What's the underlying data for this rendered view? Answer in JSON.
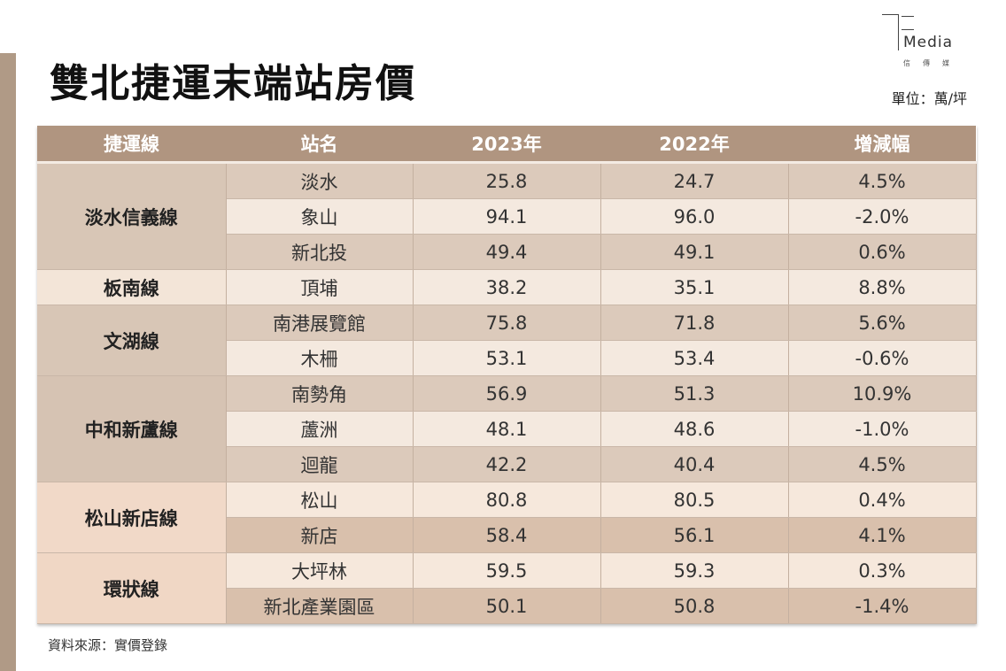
{
  "title": "雙北捷運末端站房價",
  "unit": "單位：萬/坪",
  "logo": {
    "word": "Media",
    "sub": "信傳媒"
  },
  "table": {
    "headers": [
      "捷運線",
      "站名",
      "2023年",
      "2022年",
      "增減幅"
    ],
    "groups": [
      {
        "line": "淡水信義線",
        "color": "#d8c6b6",
        "rows": [
          [
            "淡水",
            "25.8",
            "24.7",
            "4.5%"
          ],
          [
            "象山",
            "94.1",
            "96.0",
            "-2.0%"
          ],
          [
            "新北投",
            "49.4",
            "49.1",
            "0.6%"
          ]
        ]
      },
      {
        "line": "板南線",
        "color": "#f3e5d8",
        "rows": [
          [
            "頂埔",
            "38.2",
            "35.1",
            "8.8%"
          ]
        ]
      },
      {
        "line": "文湖線",
        "color": "#d8c6b6",
        "rows": [
          [
            "南港展覽館",
            "75.8",
            "71.8",
            "5.6%"
          ],
          [
            "木柵",
            "53.1",
            "53.4",
            "-0.6%"
          ]
        ]
      },
      {
        "line": "中和新蘆線",
        "color": "#d6c3b3",
        "rows": [
          [
            "南勢角",
            "56.9",
            "51.3",
            "10.9%"
          ],
          [
            "蘆洲",
            "48.1",
            "48.6",
            "-1.0%"
          ],
          [
            "迴龍",
            "42.2",
            "40.4",
            "4.5%"
          ]
        ]
      },
      {
        "line": "松山新店線",
        "color": "#f1d9c8",
        "warm": true,
        "rows": [
          [
            "松山",
            "80.8",
            "80.5",
            "0.4%"
          ],
          [
            "新店",
            "58.4",
            "56.1",
            "4.1%"
          ]
        ]
      },
      {
        "line": "環狀線",
        "color": "#f0d7c5",
        "warm": true,
        "rows": [
          [
            "大坪林",
            "59.5",
            "59.3",
            "0.3%"
          ],
          [
            "新北產業園區",
            "50.1",
            "50.8",
            "-1.4%"
          ]
        ]
      }
    ]
  },
  "source": "資料來源：實價登錄"
}
